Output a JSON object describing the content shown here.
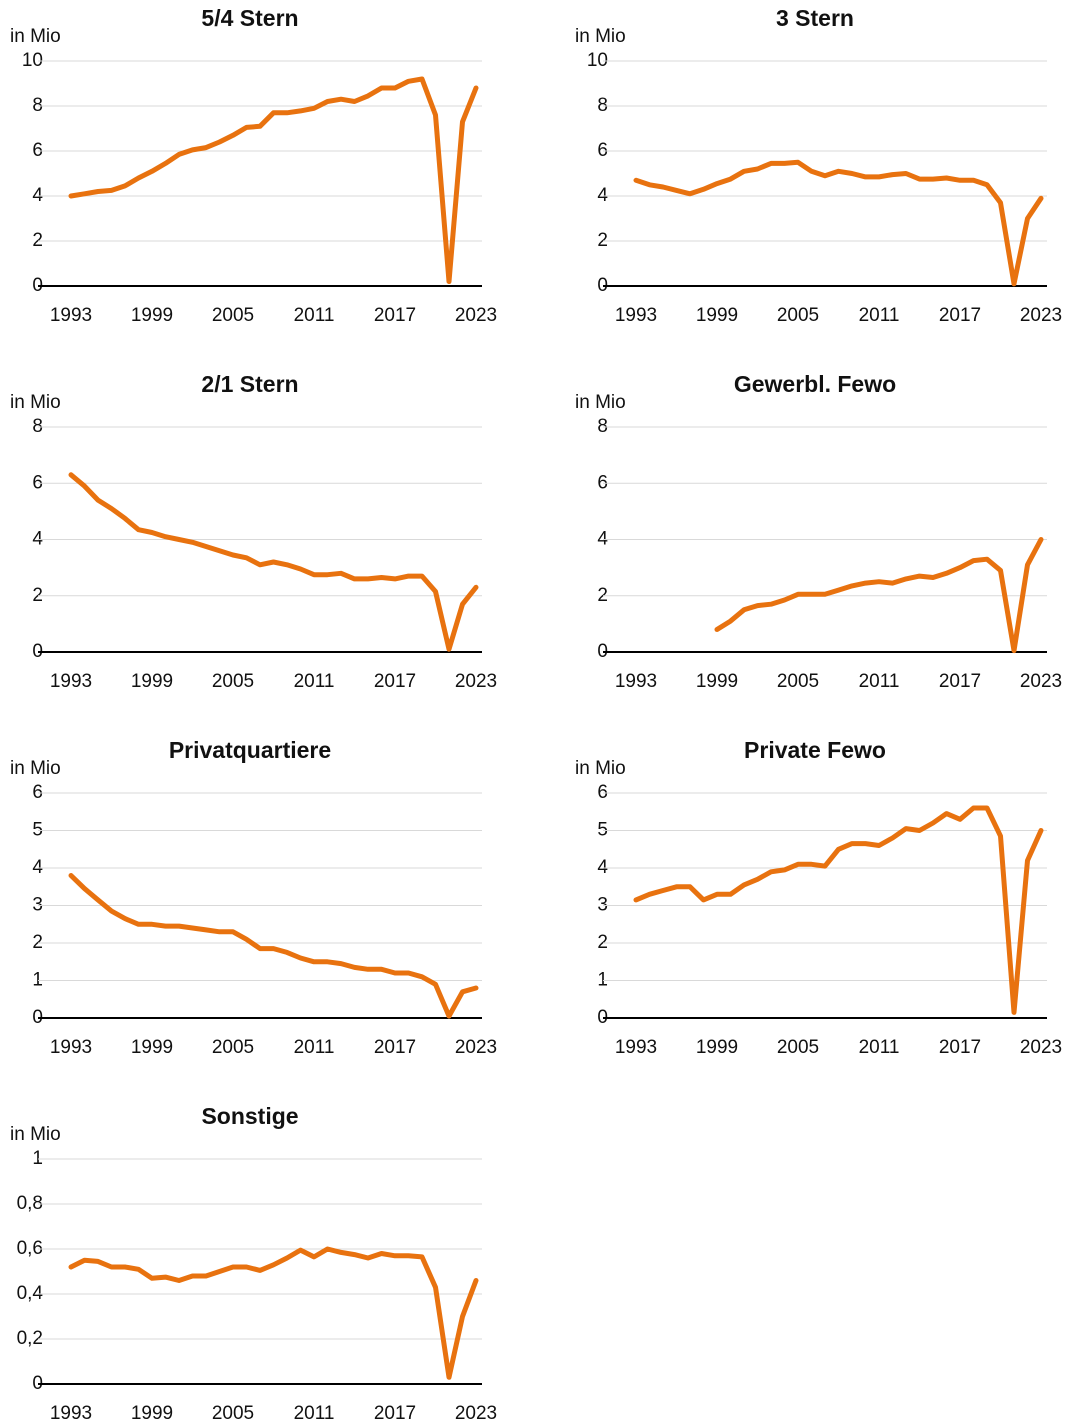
{
  "chart_data": [
    {
      "type": "line",
      "title": "5/4 Stern",
      "ylabel": "in Mio",
      "color": "#e8720f",
      "x": [
        1993,
        1994,
        1995,
        1996,
        1997,
        1998,
        1999,
        2000,
        2001,
        2002,
        2003,
        2004,
        2005,
        2006,
        2007,
        2008,
        2009,
        2010,
        2011,
        2012,
        2013,
        2014,
        2015,
        2016,
        2017,
        2018,
        2019,
        2020,
        2021,
        2022,
        2023
      ],
      "values": [
        4.0,
        4.1,
        4.2,
        4.25,
        4.45,
        4.8,
        5.1,
        5.45,
        5.85,
        6.05,
        6.15,
        6.4,
        6.7,
        7.05,
        7.1,
        7.7,
        7.7,
        7.78,
        7.9,
        8.2,
        8.3,
        8.2,
        8.45,
        8.8,
        8.8,
        9.1,
        9.2,
        7.6,
        0.2,
        7.3,
        8.8
      ],
      "xlim": [
        1993,
        2023
      ],
      "xticks": [
        1993,
        1999,
        2005,
        2011,
        2017,
        2023
      ],
      "ylim": [
        0,
        10
      ],
      "yticks": [
        0,
        2,
        4,
        6,
        8,
        10
      ],
      "grid": true
    },
    {
      "type": "line",
      "title": "3 Stern",
      "ylabel": "in Mio",
      "color": "#e8720f",
      "x": [
        1993,
        1994,
        1995,
        1996,
        1997,
        1998,
        1999,
        2000,
        2001,
        2002,
        2003,
        2004,
        2005,
        2006,
        2007,
        2008,
        2009,
        2010,
        2011,
        2012,
        2013,
        2014,
        2015,
        2016,
        2017,
        2018,
        2019,
        2020,
        2021,
        2022,
        2023
      ],
      "values": [
        4.7,
        4.5,
        4.4,
        4.25,
        4.1,
        4.3,
        4.55,
        4.75,
        5.1,
        5.2,
        5.45,
        5.45,
        5.5,
        5.1,
        4.9,
        5.1,
        5.0,
        4.85,
        4.85,
        4.95,
        5.0,
        4.75,
        4.75,
        4.8,
        4.7,
        4.7,
        4.5,
        3.7,
        0.1,
        3.0,
        3.9
      ],
      "xlim": [
        1993,
        2023
      ],
      "xticks": [
        1993,
        1999,
        2005,
        2011,
        2017,
        2023
      ],
      "ylim": [
        0,
        10
      ],
      "yticks": [
        0,
        2,
        4,
        6,
        8,
        10
      ],
      "grid": true
    },
    {
      "type": "line",
      "title": "2/1 Stern",
      "ylabel": "in Mio",
      "color": "#e8720f",
      "x": [
        1993,
        1994,
        1995,
        1996,
        1997,
        1998,
        1999,
        2000,
        2001,
        2002,
        2003,
        2004,
        2005,
        2006,
        2007,
        2008,
        2009,
        2010,
        2011,
        2012,
        2013,
        2014,
        2015,
        2016,
        2017,
        2018,
        2019,
        2020,
        2021,
        2022,
        2023
      ],
      "values": [
        6.3,
        5.9,
        5.4,
        5.1,
        4.75,
        4.35,
        4.25,
        4.1,
        4.0,
        3.9,
        3.75,
        3.6,
        3.45,
        3.35,
        3.1,
        3.2,
        3.1,
        2.95,
        2.75,
        2.75,
        2.8,
        2.6,
        2.6,
        2.65,
        2.6,
        2.7,
        2.7,
        2.15,
        0.1,
        1.7,
        2.3
      ],
      "xlim": [
        1993,
        2023
      ],
      "xticks": [
        1993,
        1999,
        2005,
        2011,
        2017,
        2023
      ],
      "ylim": [
        0,
        8
      ],
      "yticks": [
        0,
        2,
        4,
        6,
        8
      ],
      "grid": true
    },
    {
      "type": "line",
      "title": "Gewerbl. Fewo",
      "ylabel": "in Mio",
      "color": "#e8720f",
      "x": [
        1993,
        1994,
        1995,
        1996,
        1997,
        1998,
        1999,
        2000,
        2001,
        2002,
        2003,
        2004,
        2005,
        2006,
        2007,
        2008,
        2009,
        2010,
        2011,
        2012,
        2013,
        2014,
        2015,
        2016,
        2017,
        2018,
        2019,
        2020,
        2021,
        2022,
        2023
      ],
      "values": [
        null,
        null,
        null,
        null,
        null,
        null,
        0.8,
        1.1,
        1.5,
        1.65,
        1.7,
        1.85,
        2.05,
        2.05,
        2.05,
        2.2,
        2.35,
        2.45,
        2.5,
        2.45,
        2.6,
        2.7,
        2.65,
        2.8,
        3.0,
        3.25,
        3.3,
        2.9,
        0.05,
        3.1,
        4.0
      ],
      "xlim": [
        1993,
        2023
      ],
      "xticks": [
        1993,
        1999,
        2005,
        2011,
        2017,
        2023
      ],
      "ylim": [
        0,
        8
      ],
      "yticks": [
        0,
        2,
        4,
        6,
        8
      ],
      "grid": true
    },
    {
      "type": "line",
      "title": "Privatquartiere",
      "ylabel": "in Mio",
      "color": "#e8720f",
      "x": [
        1993,
        1994,
        1995,
        1996,
        1997,
        1998,
        1999,
        2000,
        2001,
        2002,
        2003,
        2004,
        2005,
        2006,
        2007,
        2008,
        2009,
        2010,
        2011,
        2012,
        2013,
        2014,
        2015,
        2016,
        2017,
        2018,
        2019,
        2020,
        2021,
        2022,
        2023
      ],
      "values": [
        3.8,
        3.45,
        3.15,
        2.85,
        2.65,
        2.5,
        2.5,
        2.45,
        2.45,
        2.4,
        2.35,
        2.3,
        2.3,
        2.1,
        1.85,
        1.85,
        1.75,
        1.6,
        1.5,
        1.5,
        1.45,
        1.35,
        1.3,
        1.3,
        1.2,
        1.2,
        1.1,
        0.9,
        0.05,
        0.7,
        0.8
      ],
      "xlim": [
        1993,
        2023
      ],
      "xticks": [
        1993,
        1999,
        2005,
        2011,
        2017,
        2023
      ],
      "ylim": [
        0,
        6
      ],
      "yticks": [
        0,
        1,
        2,
        3,
        4,
        5,
        6
      ],
      "grid": true
    },
    {
      "type": "line",
      "title": "Private Fewo",
      "ylabel": "in Mio",
      "color": "#e8720f",
      "x": [
        1993,
        1994,
        1995,
        1996,
        1997,
        1998,
        1999,
        2000,
        2001,
        2002,
        2003,
        2004,
        2005,
        2006,
        2007,
        2008,
        2009,
        2010,
        2011,
        2012,
        2013,
        2014,
        2015,
        2016,
        2017,
        2018,
        2019,
        2020,
        2021,
        2022,
        2023
      ],
      "values": [
        3.15,
        3.3,
        3.4,
        3.5,
        3.5,
        3.15,
        3.3,
        3.3,
        3.55,
        3.7,
        3.9,
        3.95,
        4.1,
        4.1,
        4.05,
        4.5,
        4.65,
        4.65,
        4.6,
        4.8,
        5.05,
        5.0,
        5.2,
        5.45,
        5.3,
        5.6,
        5.6,
        4.85,
        0.15,
        4.2,
        5.0
      ],
      "xlim": [
        1993,
        2023
      ],
      "xticks": [
        1993,
        1999,
        2005,
        2011,
        2017,
        2023
      ],
      "ylim": [
        0,
        6
      ],
      "yticks": [
        0,
        1,
        2,
        3,
        4,
        5,
        6
      ],
      "grid": true
    },
    {
      "type": "line",
      "title": "Sonstige",
      "ylabel": "in Mio",
      "color": "#e8720f",
      "x": [
        1993,
        1994,
        1995,
        1996,
        1997,
        1998,
        1999,
        2000,
        2001,
        2002,
        2003,
        2004,
        2005,
        2006,
        2007,
        2008,
        2009,
        2010,
        2011,
        2012,
        2013,
        2014,
        2015,
        2016,
        2017,
        2018,
        2019,
        2020,
        2021,
        2022,
        2023
      ],
      "values": [
        0.52,
        0.55,
        0.545,
        0.52,
        0.52,
        0.51,
        0.47,
        0.475,
        0.46,
        0.48,
        0.48,
        0.5,
        0.52,
        0.52,
        0.505,
        0.53,
        0.56,
        0.595,
        0.565,
        0.6,
        0.585,
        0.575,
        0.56,
        0.58,
        0.57,
        0.57,
        0.565,
        0.43,
        0.03,
        0.3,
        0.46
      ],
      "xlim": [
        1993,
        2023
      ],
      "xticks": [
        1993,
        1999,
        2005,
        2011,
        2017,
        2023
      ],
      "ylim": [
        0,
        1
      ],
      "yticks": [
        0,
        {
          "value": 0.2,
          "label": "0,2"
        },
        {
          "value": 0.4,
          "label": "0,4"
        },
        {
          "value": 0.6,
          "label": "0,6"
        },
        {
          "value": 0.8,
          "label": "0,8"
        },
        1
      ],
      "grid": true
    }
  ]
}
